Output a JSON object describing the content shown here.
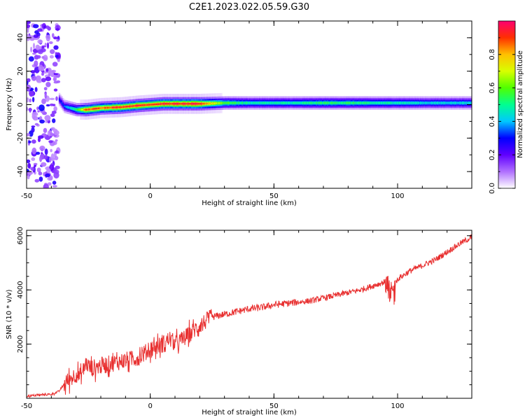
{
  "title": "C2E1.2023.022.05.59.G30",
  "chart_data": [
    {
      "type": "heatmap",
      "title": "",
      "xlabel": "Height of straight line (km)",
      "ylabel": "Frequency (Hz)",
      "xlim": [
        -50,
        130
      ],
      "ylim": [
        -50,
        50
      ],
      "xticks": [
        "-50",
        "0",
        "50",
        "100"
      ],
      "yticks": [
        "-40",
        "-20",
        "0",
        "20",
        "40"
      ],
      "colorbar": {
        "label": "Normalized spectral amplitude",
        "range": [
          0,
          1
        ],
        "ticks": [
          "0.0",
          "0.2",
          "0.4",
          "0.6",
          "0.8"
        ],
        "colormap": [
          "#ffffff",
          "#b070ff",
          "#6000ff",
          "#0000ff",
          "#00c8ff",
          "#00ff90",
          "#50ff00",
          "#d8ff00",
          "#ffc000",
          "#ff3000",
          "#ff0070"
        ]
      },
      "ridge": {
        "name": "",
        "x": [
          -37,
          -35,
          -30,
          -26,
          -20,
          -12,
          -5,
          0,
          5,
          10,
          15,
          20,
          30,
          40,
          50,
          60,
          70,
          80,
          90,
          100,
          110,
          120,
          130
        ],
        "y": [
          3,
          -1,
          -3,
          -3,
          -2,
          -1.5,
          -0.5,
          0,
          0.5,
          0.5,
          0.5,
          0.5,
          1,
          1,
          1,
          1,
          1,
          1,
          1,
          1,
          1,
          1,
          1
        ],
        "amplitude": [
          0.3,
          0.35,
          0.55,
          0.9,
          0.9,
          0.95,
          0.95,
          0.95,
          0.95,
          0.95,
          0.95,
          0.95,
          0.6,
          0.5,
          0.5,
          0.5,
          0.55,
          0.55,
          0.5,
          0.5,
          0.45,
          0.45,
          0.45
        ]
      },
      "noise_region_x": [
        -50,
        -37
      ]
    },
    {
      "type": "line",
      "title": "",
      "xlabel": "Height of straight line (km)",
      "ylabel": "SNR (10 * v/v)",
      "xlim": [
        -50,
        130
      ],
      "ylim": [
        0,
        6200
      ],
      "xticks": [
        "-50",
        "0",
        "50",
        "100"
      ],
      "yticks": [
        "2000",
        "4000",
        "6000"
      ],
      "series": [
        {
          "name": "",
          "color": "#e83030",
          "x": [
            -50,
            -45,
            -40,
            -37,
            -35,
            -30,
            -28,
            -26,
            -24,
            -20,
            -15,
            -10,
            -5,
            0,
            5,
            8,
            10,
            15,
            20,
            25,
            30,
            35,
            40,
            45,
            50,
            55,
            60,
            65,
            70,
            75,
            80,
            85,
            90,
            95,
            97,
            100,
            105,
            110,
            115,
            120,
            125,
            130
          ],
          "y": [
            80,
            120,
            150,
            250,
            500,
            900,
            800,
            1300,
            1100,
            1200,
            1300,
            1400,
            1500,
            1800,
            2000,
            2200,
            2000,
            2300,
            2700,
            3000,
            3100,
            3200,
            3300,
            3350,
            3450,
            3500,
            3550,
            3600,
            3700,
            3800,
            3900,
            4000,
            4150,
            4300,
            3800,
            4400,
            4700,
            4900,
            5100,
            5400,
            5700,
            5950
          ]
        }
      ]
    }
  ]
}
